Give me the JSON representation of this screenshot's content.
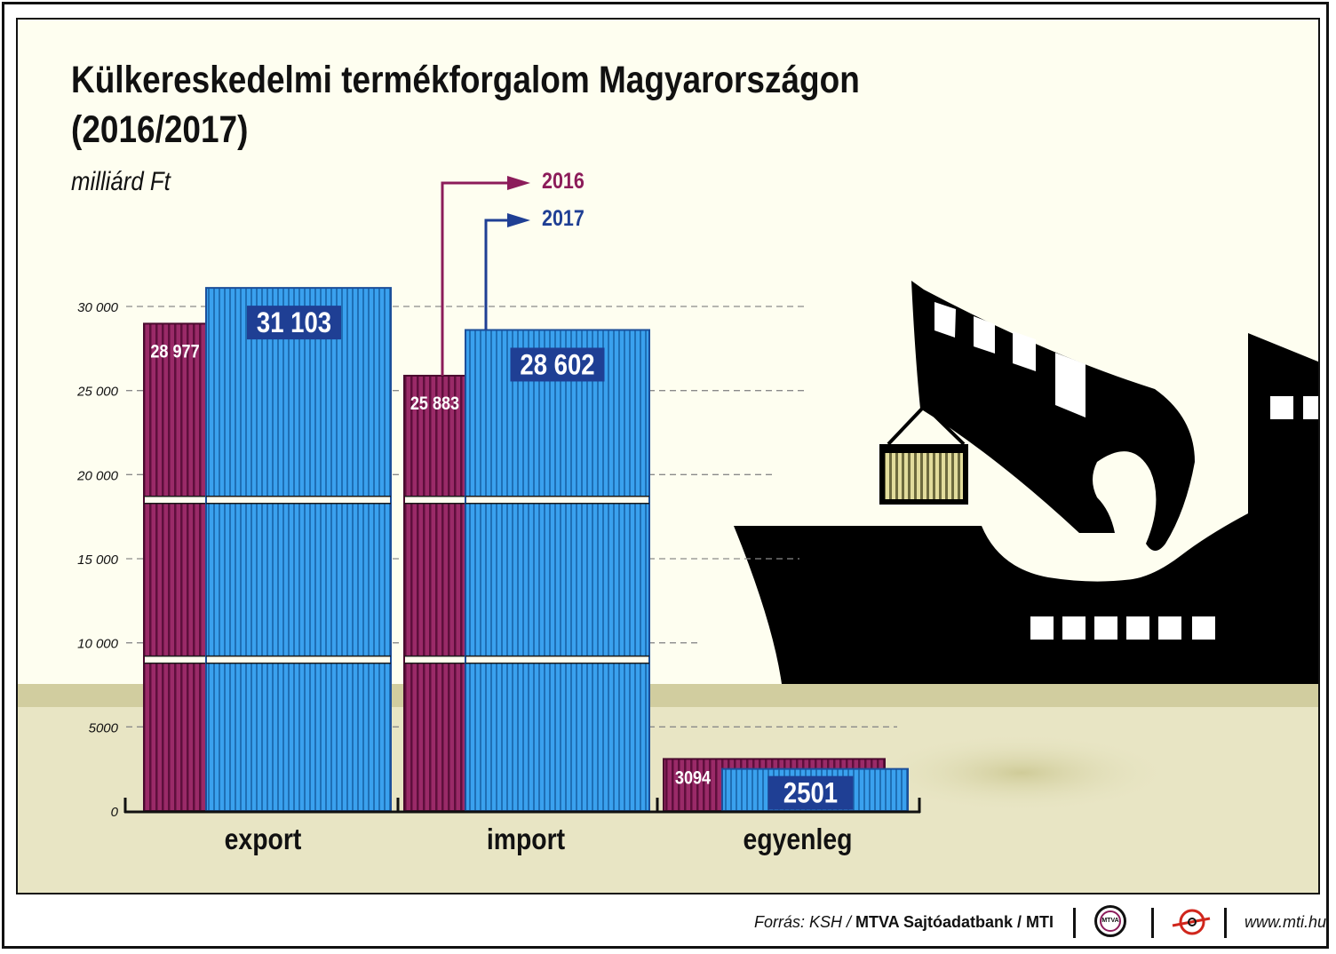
{
  "chart_data": {
    "type": "bar",
    "title": "Külkereskedelmi termékforgalom Magyarországon",
    "title_line2": "(2016/2017)",
    "ylabel": "milliárd Ft",
    "categories": [
      "export",
      "import",
      "egyenleg"
    ],
    "series": [
      {
        "name": "2016",
        "values": [
          28977,
          25883,
          3094
        ],
        "labels": [
          "28 977",
          "25 883",
          "3094"
        ],
        "color": "#8c1c5a"
      },
      {
        "name": "2017",
        "values": [
          31103,
          28602,
          2501
        ],
        "labels": [
          "31 103",
          "28 602",
          "2501"
        ],
        "color": "#2e8fe0"
      }
    ],
    "ylim": [
      0,
      30000
    ],
    "yticks": [
      {
        "value": 0,
        "label": "0"
      },
      {
        "value": 5000,
        "label": "5000"
      },
      {
        "value": 10000,
        "label": "10 000"
      },
      {
        "value": 15000,
        "label": "15 000"
      },
      {
        "value": 20000,
        "label": "20 000"
      },
      {
        "value": 25000,
        "label": "25 000"
      },
      {
        "value": 30000,
        "label": "30 000"
      }
    ],
    "grid": true,
    "legend": "top-center, arrow callouts",
    "colors": {
      "y2016": "#8c1c5a",
      "y2017": "#2e8fe0",
      "label_box": "#1f3f94",
      "ship": "#000000",
      "ground": "#e8e5c4"
    }
  },
  "footer": {
    "source_prefix": "Forrás: KSH / ",
    "source_bold": "MTVA Sajtóadatbank / MTI",
    "mtva_logo_text": "MTVA",
    "url": "www.mti.hu"
  }
}
